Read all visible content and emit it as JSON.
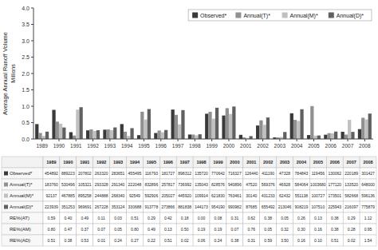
{
  "chart_data": {
    "type": "bar",
    "categories": [
      "1989",
      "1990",
      "1991",
      "1992",
      "1993",
      "1994",
      "1995",
      "1996",
      "1997",
      "1998",
      "1999",
      "2000",
      "2001",
      "2002",
      "2003",
      "2004",
      "2005",
      "2006",
      "2007",
      "2008"
    ],
    "series": [
      {
        "name": "Observed*",
        "color": "#3a3a3a",
        "values": [
          0.454892,
          0.889223,
          0.207802,
          0.26332,
          0.283651,
          0.455495,
          0.116793,
          0.181727,
          0.898312,
          0.13572,
          0.770642,
          0.716327,
          0.12644,
          0.41119,
          0.047328,
          0.784843,
          0.119456,
          0.130062,
          0.220189,
          0.301427
        ]
      },
      {
        "name": "Annual(T)*",
        "color": "#909090",
        "values": [
          0.18376,
          0.530496,
          0.105321,
          0.293328,
          0.29134,
          0.222048,
          0.832896,
          0.257817,
          0.736992,
          0.135043,
          0.828576,
          0.940896,
          0.04752,
          0.569376,
          0.046928,
          0.584064,
          1.00368,
          0.17712,
          0.13352,
          0.648
        ]
      },
      {
        "name": "Annual(M)*",
        "color": "#c0c0c0",
        "values": [
          0.092137,
          0.467885,
          0.895258,
          0.244888,
          0.26834,
          0.092549,
          0.592906,
          0.205027,
          0.44592,
          0.109914,
          0.62183,
          0.763461,
          0.03014,
          0.431233,
          0.062432,
          0.551138,
          0.100727,
          0.173501,
          0.582668,
          0.596136
        ]
      },
      {
        "name": "Annual(D)*",
        "color": "#606060",
        "values": [
          0.223939,
          0.351253,
          0.969691,
          0.267228,
          0.353124,
          0.330688,
          0.913778,
          0.273866,
          0.881838,
          0.144173,
          0.95419,
          0.990982,
          0.087685,
          0.655492,
          0.213046,
          0.908219,
          0.10751,
          0.225943,
          0.216097,
          0.775879
        ]
      }
    ],
    "ylabel": "Average Annual Runoff Volume",
    "annotations": [
      "Millions"
    ],
    "ylim": [
      0,
      4.0
    ],
    "yticks": [
      {
        "value": 0,
        "label": "0.0"
      },
      0.5,
      {
        "value": 1,
        "label": "1.0"
      },
      1.5,
      {
        "value": 2,
        "label": "2.0"
      },
      2.5,
      {
        "value": 3,
        "label": "3.0"
      },
      3.5,
      {
        "value": 4,
        "label": "4.0"
      }
    ],
    "grid": false,
    "legend": "top-right",
    "table": {
      "row_labels": [
        "Observed*",
        "Annual(T)*",
        "Annual(M)*",
        "Annual(D)*",
        "RE%(AT)",
        "RE%(AM)",
        "RE%(AD)"
      ],
      "rows": [
        {
          "values": [
            454892,
            889223,
            207802,
            263320,
            283651,
            455495,
            116793,
            181727,
            898312,
            135720,
            770642,
            716327,
            126440,
            411190,
            47328,
            784843,
            119456,
            130062,
            220189,
            301427
          ]
        },
        {
          "values": [
            183760,
            530496,
            105321,
            293328,
            291340,
            222048,
            832896,
            257817,
            736992,
            135043,
            828576,
            940896,
            47520,
            569376,
            46928,
            584064,
            1003680,
            177120,
            133520,
            648000
          ]
        },
        {
          "values": [
            92137,
            467885,
            895258,
            244888,
            268340,
            92549,
            592906,
            205027,
            445920,
            109914,
            621830,
            763461,
            30140,
            431233,
            62432,
            551138,
            100727,
            173501,
            582668,
            596136
          ]
        },
        {
          "values": [
            223939,
            351253,
            969691,
            267228,
            353124,
            330688,
            913778,
            273866,
            881838,
            144173,
            954190,
            990982,
            87685,
            655492,
            213046,
            908219,
            107510,
            225943,
            216097,
            775879
          ]
        },
        {
          "values": [
            0.59,
            0.4,
            0.49,
            0.11,
            0.03,
            0.51,
            0.29,
            0.42,
            0.18,
            0,
            0.08,
            0.31,
            0.62,
            0.38,
            0.05,
            0.26,
            0.13,
            0.38,
            0.29,
            1.12
          ],
          "value_labels": [
            "0.59",
            "0.40",
            "0.49",
            "0.11",
            "0.03",
            "0.51",
            "0.29",
            "0.42",
            "0.18",
            "0.00",
            "0.08",
            "0.31",
            "0.62",
            "0.38",
            "0.05",
            "0.26",
            "0.13",
            "0.38",
            "0.29",
            "1.12"
          ]
        },
        {
          "values": [
            0.8,
            0.47,
            0.37,
            0.07,
            0.05,
            0.8,
            0.49,
            0.13,
            0.5,
            0.19,
            0.19,
            0.07,
            0.76,
            0.05,
            0.32,
            0.3,
            0.16,
            0.38,
            0.28,
            0.95
          ],
          "value_labels": [
            "0.80",
            "0.47",
            "0.37",
            "0.07",
            "0.05",
            "0.80",
            "0.49",
            "0.13",
            "0.50",
            "0.19",
            "0.19",
            "0.07",
            "0.76",
            "0.05",
            "0.32",
            "0.30",
            "0.16",
            "0.38",
            "0.28",
            "0.95"
          ]
        },
        {
          "values": [
            0.51,
            0.38,
            0.53,
            0.01,
            0.24,
            0.27,
            0.22,
            0.51,
            0.02,
            0.06,
            0.24,
            0.38,
            0.31,
            0.59,
            3.5,
            0.16,
            0.1,
            0.51,
            0.02,
            1.54
          ],
          "value_labels": [
            "0.51",
            "0.38",
            "0.53",
            "0.01",
            "0.24",
            "0.27",
            "0.22",
            "0.51",
            "0.02",
            "0.06",
            "0.24",
            "0.38",
            "0.31",
            "0.59",
            "3.50",
            "0.16",
            "0.10",
            "0.51",
            "0.02",
            "1.54"
          ]
        }
      ]
    }
  }
}
